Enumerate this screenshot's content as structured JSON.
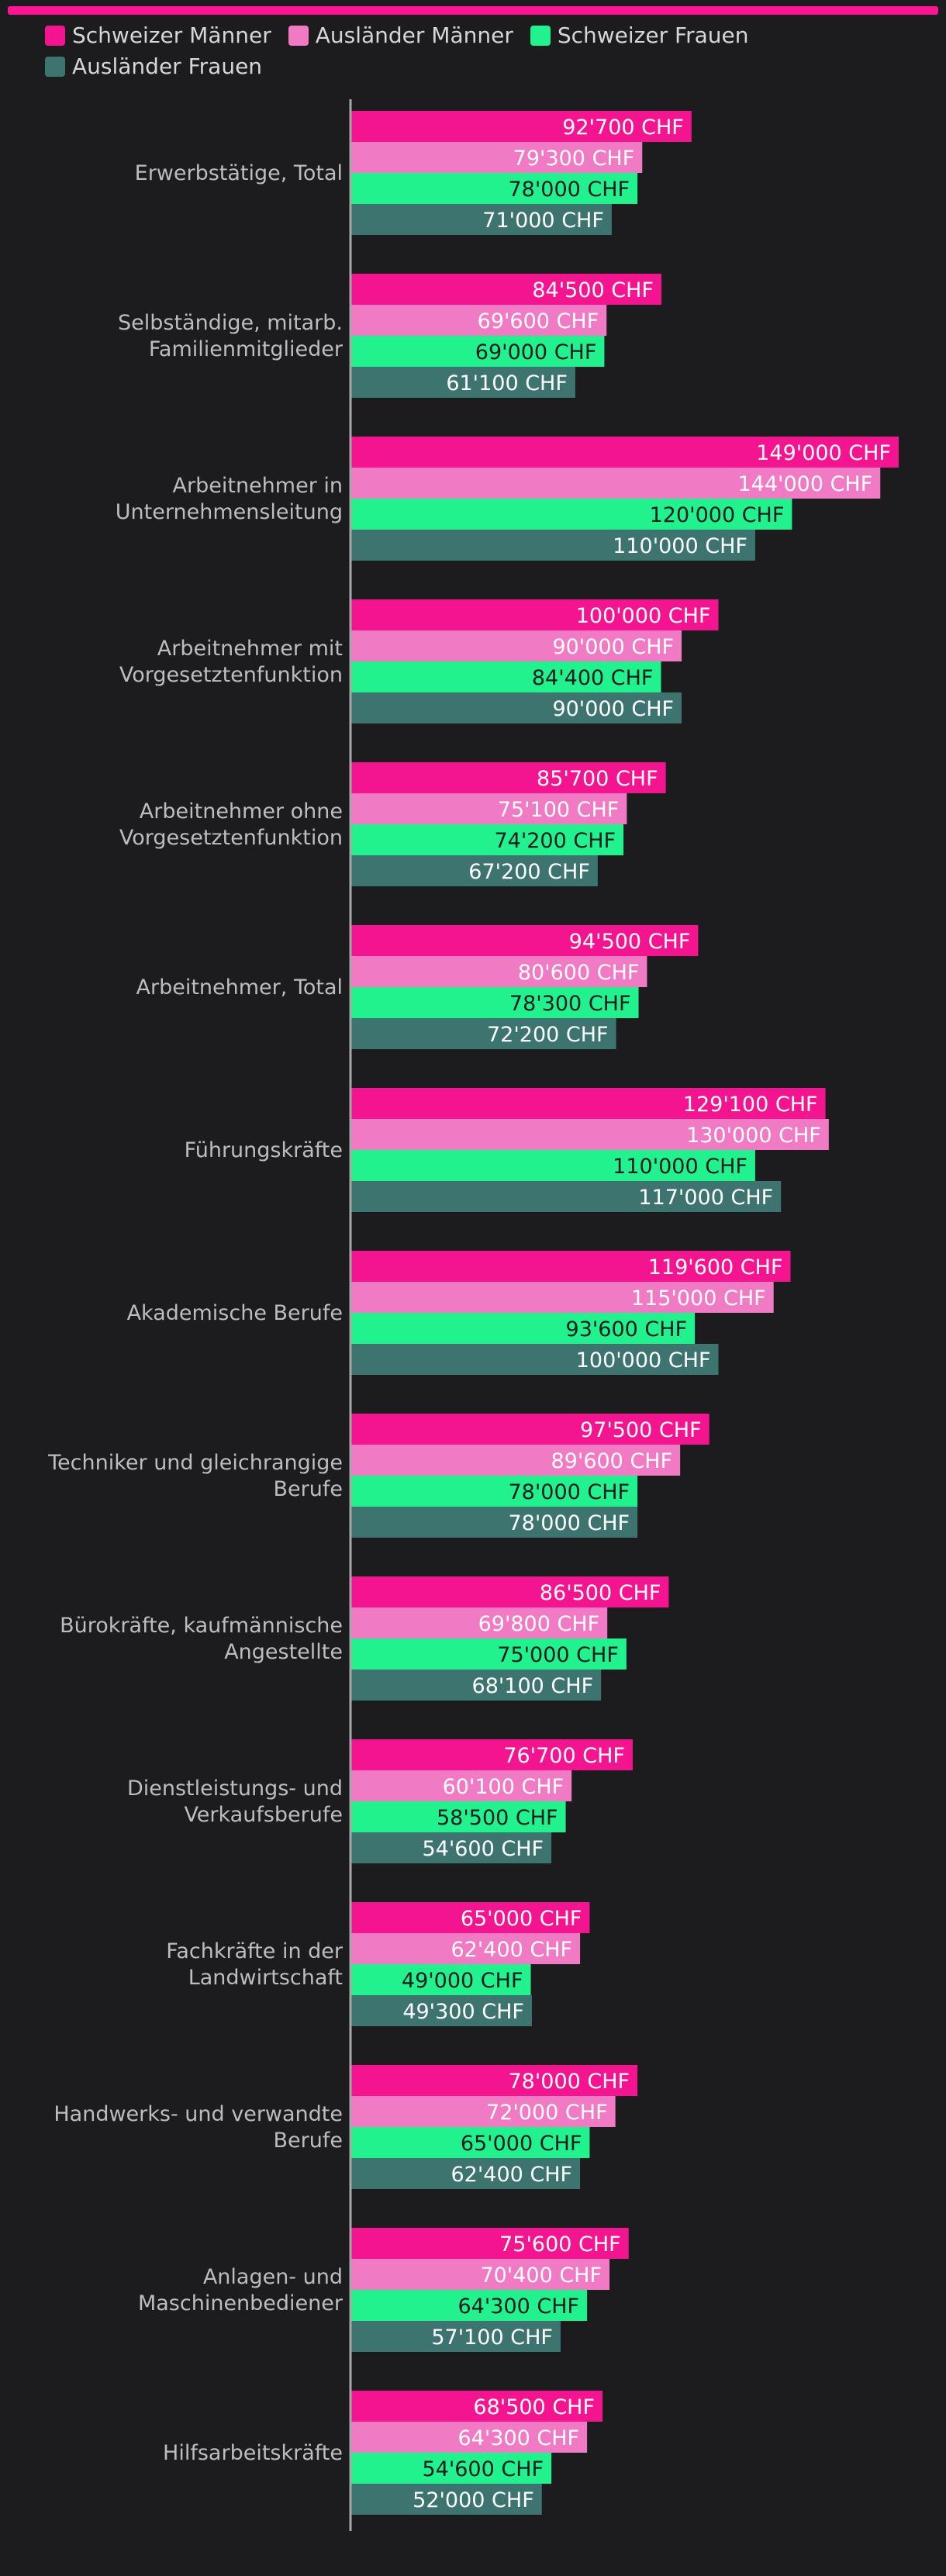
{
  "chart_data": {
    "type": "bar",
    "orientation": "horizontal",
    "title": "",
    "xlabel": "",
    "ylabel": "",
    "unit": "CHF",
    "xlim": [
      0,
      160000
    ],
    "grid": false,
    "legend_position": "top",
    "categories": [
      "Erwerbstätige, Total",
      "Selbständige, mitarb. Familienmitglieder",
      "Arbeitnehmer in Unternehmensleitung",
      "Arbeitnehmer mit Vorgesetztenfunktion",
      "Arbeitnehmer ohne Vorgesetztenfunktion",
      "Arbeitnehmer, Total",
      "Führungskräfte",
      "Akademische Berufe",
      "Techniker und gleichrangige Berufe",
      "Bürokräfte, kaufmännische Angestellte",
      "Dienstleistungs- und Verkaufsberufe",
      "Fachkräfte in der Landwirtschaft",
      "Handwerks- und verwandte Berufe",
      "Anlagen- und Maschinenbediener",
      "Hilfsarbeitskräfte"
    ],
    "category_lines": [
      [
        "Erwerbstätige, Total"
      ],
      [
        "Selbständige, mitarb.",
        "Familienmitglieder"
      ],
      [
        "Arbeitnehmer in",
        "Unternehmensleitung"
      ],
      [
        "Arbeitnehmer mit",
        "Vorgesetztenfunktion"
      ],
      [
        "Arbeitnehmer ohne",
        "Vorgesetztenfunktion"
      ],
      [
        "Arbeitnehmer, Total"
      ],
      [
        "Führungskräfte"
      ],
      [
        "Akademische Berufe"
      ],
      [
        "Techniker und gleichrangige",
        "Berufe"
      ],
      [
        "Bürokräfte, kaufmännische",
        "Angestellte"
      ],
      [
        "Dienstleistungs- und",
        "Verkaufsberufe"
      ],
      [
        "Fachkräfte in der",
        "Landwirtschaft"
      ],
      [
        "Handwerks- und verwandte",
        "Berufe"
      ],
      [
        "Anlagen- und",
        "Maschinenbediener"
      ],
      [
        "Hilfsarbeitskräfte"
      ]
    ],
    "series": [
      {
        "name": "Schweizer Männer",
        "color": "#f5148f",
        "label_color": "#ffffff",
        "values": [
          92700,
          84500,
          149000,
          100000,
          85700,
          94500,
          129100,
          119600,
          97500,
          86500,
          76700,
          65000,
          78000,
          75600,
          68500
        ],
        "labels": [
          "92'700 CHF",
          "84'500 CHF",
          "149'000 CHF",
          "100'000 CHF",
          "85'700 CHF",
          "94'500 CHF",
          "129'100 CHF",
          "119'600 CHF",
          "97'500 CHF",
          "86'500 CHF",
          "76'700 CHF",
          "65'000 CHF",
          "78'000 CHF",
          "75'600 CHF",
          "68'500 CHF"
        ]
      },
      {
        "name": "Ausländer Männer",
        "color": "#f07ac3",
        "label_color": "#ffffff",
        "values": [
          79300,
          69600,
          144000,
          90000,
          75100,
          80600,
          130000,
          115000,
          89600,
          69800,
          60100,
          62400,
          72000,
          70400,
          64300
        ],
        "labels": [
          "79'300 CHF",
          "69'600 CHF",
          "144'000 CHF",
          "90'000 CHF",
          "75'100 CHF",
          "80'600 CHF",
          "130'000 CHF",
          "115'000 CHF",
          "89'600 CHF",
          "69'800 CHF",
          "60'100 CHF",
          "62'400 CHF",
          "72'000 CHF",
          "70'400 CHF",
          "64'300 CHF"
        ]
      },
      {
        "name": "Schweizer Frauen",
        "color": "#22f28e",
        "label_color": "#1c1c1e",
        "values": [
          78000,
          69000,
          120000,
          84400,
          74200,
          78300,
          110000,
          93600,
          78000,
          75000,
          58500,
          49000,
          65000,
          64300,
          54600
        ],
        "labels": [
          "78'000 CHF",
          "69'000 CHF",
          "120'000 CHF",
          "84'400 CHF",
          "74'200 CHF",
          "78'300 CHF",
          "110'000 CHF",
          "93'600 CHF",
          "78'000 CHF",
          "75'000 CHF",
          "58'500 CHF",
          "49'000 CHF",
          "65'000 CHF",
          "64'300 CHF",
          "54'600 CHF"
        ]
      },
      {
        "name": "Ausländer Frauen",
        "color": "#3d7470",
        "label_color": "#ffffff",
        "values": [
          71000,
          61100,
          110000,
          90000,
          67200,
          72200,
          117000,
          100000,
          78000,
          68100,
          54600,
          49300,
          62400,
          57100,
          52000
        ],
        "labels": [
          "71'000 CHF",
          "61'100 CHF",
          "110'000 CHF",
          "90'000 CHF",
          "67'200 CHF",
          "72'200 CHF",
          "117'000 CHF",
          "100'000 CHF",
          "78'000 CHF",
          "68'100 CHF",
          "54'600 CHF",
          "49'300 CHF",
          "62'400 CHF",
          "57'100 CHF",
          "52'000 CHF"
        ]
      }
    ]
  },
  "colors": {
    "background": "#1c1c1e",
    "top_bar": "#ff1493",
    "axis": "#a8a8a8",
    "category_text": "#bdbdbd",
    "legend_text": "#d6d6d6"
  }
}
